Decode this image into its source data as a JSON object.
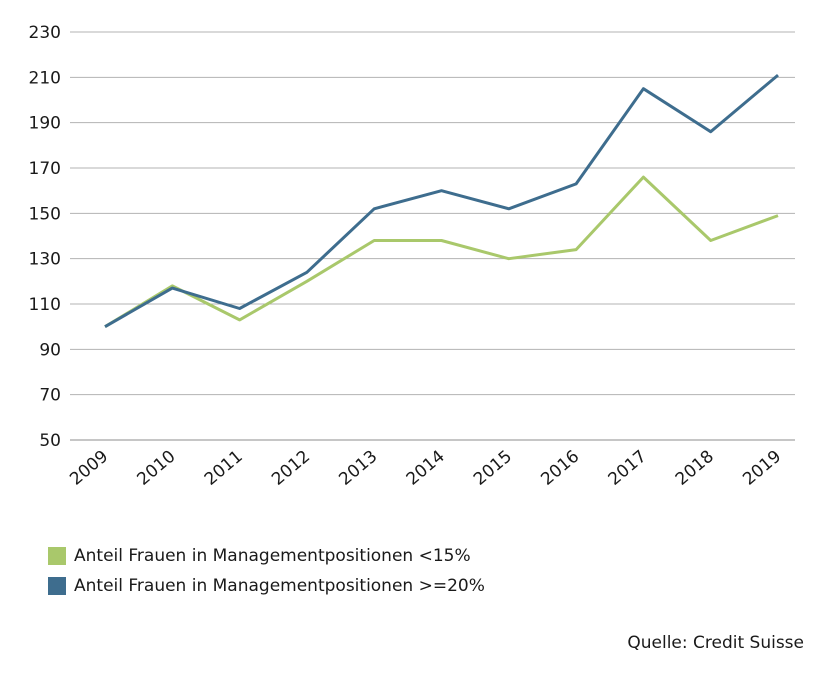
{
  "chart_data": {
    "type": "line",
    "categories": [
      "2009",
      "2010",
      "2011",
      "2012",
      "2013",
      "2014",
      "2015",
      "2016",
      "2017",
      "2018",
      "2019"
    ],
    "series": [
      {
        "name": "Anteil Frauen in Managementpositionen <15%",
        "color": "#a9c86b",
        "values": [
          100,
          118,
          103,
          120,
          138,
          138,
          130,
          134,
          166,
          138,
          149
        ]
      },
      {
        "name": "Anteil Frauen in Managementpositionen >=20%",
        "color": "#3e6d8e",
        "values": [
          100,
          117,
          108,
          124,
          152,
          160,
          152,
          163,
          205,
          186,
          211
        ]
      }
    ],
    "yticks": [
      "50",
      "70",
      "90",
      "110",
      "130",
      "150",
      "170",
      "190",
      "210",
      "230"
    ],
    "ylim": [
      50,
      230
    ],
    "grid": true,
    "legend_position": "bottom-left"
  },
  "source": "Quelle: Credit Suisse"
}
